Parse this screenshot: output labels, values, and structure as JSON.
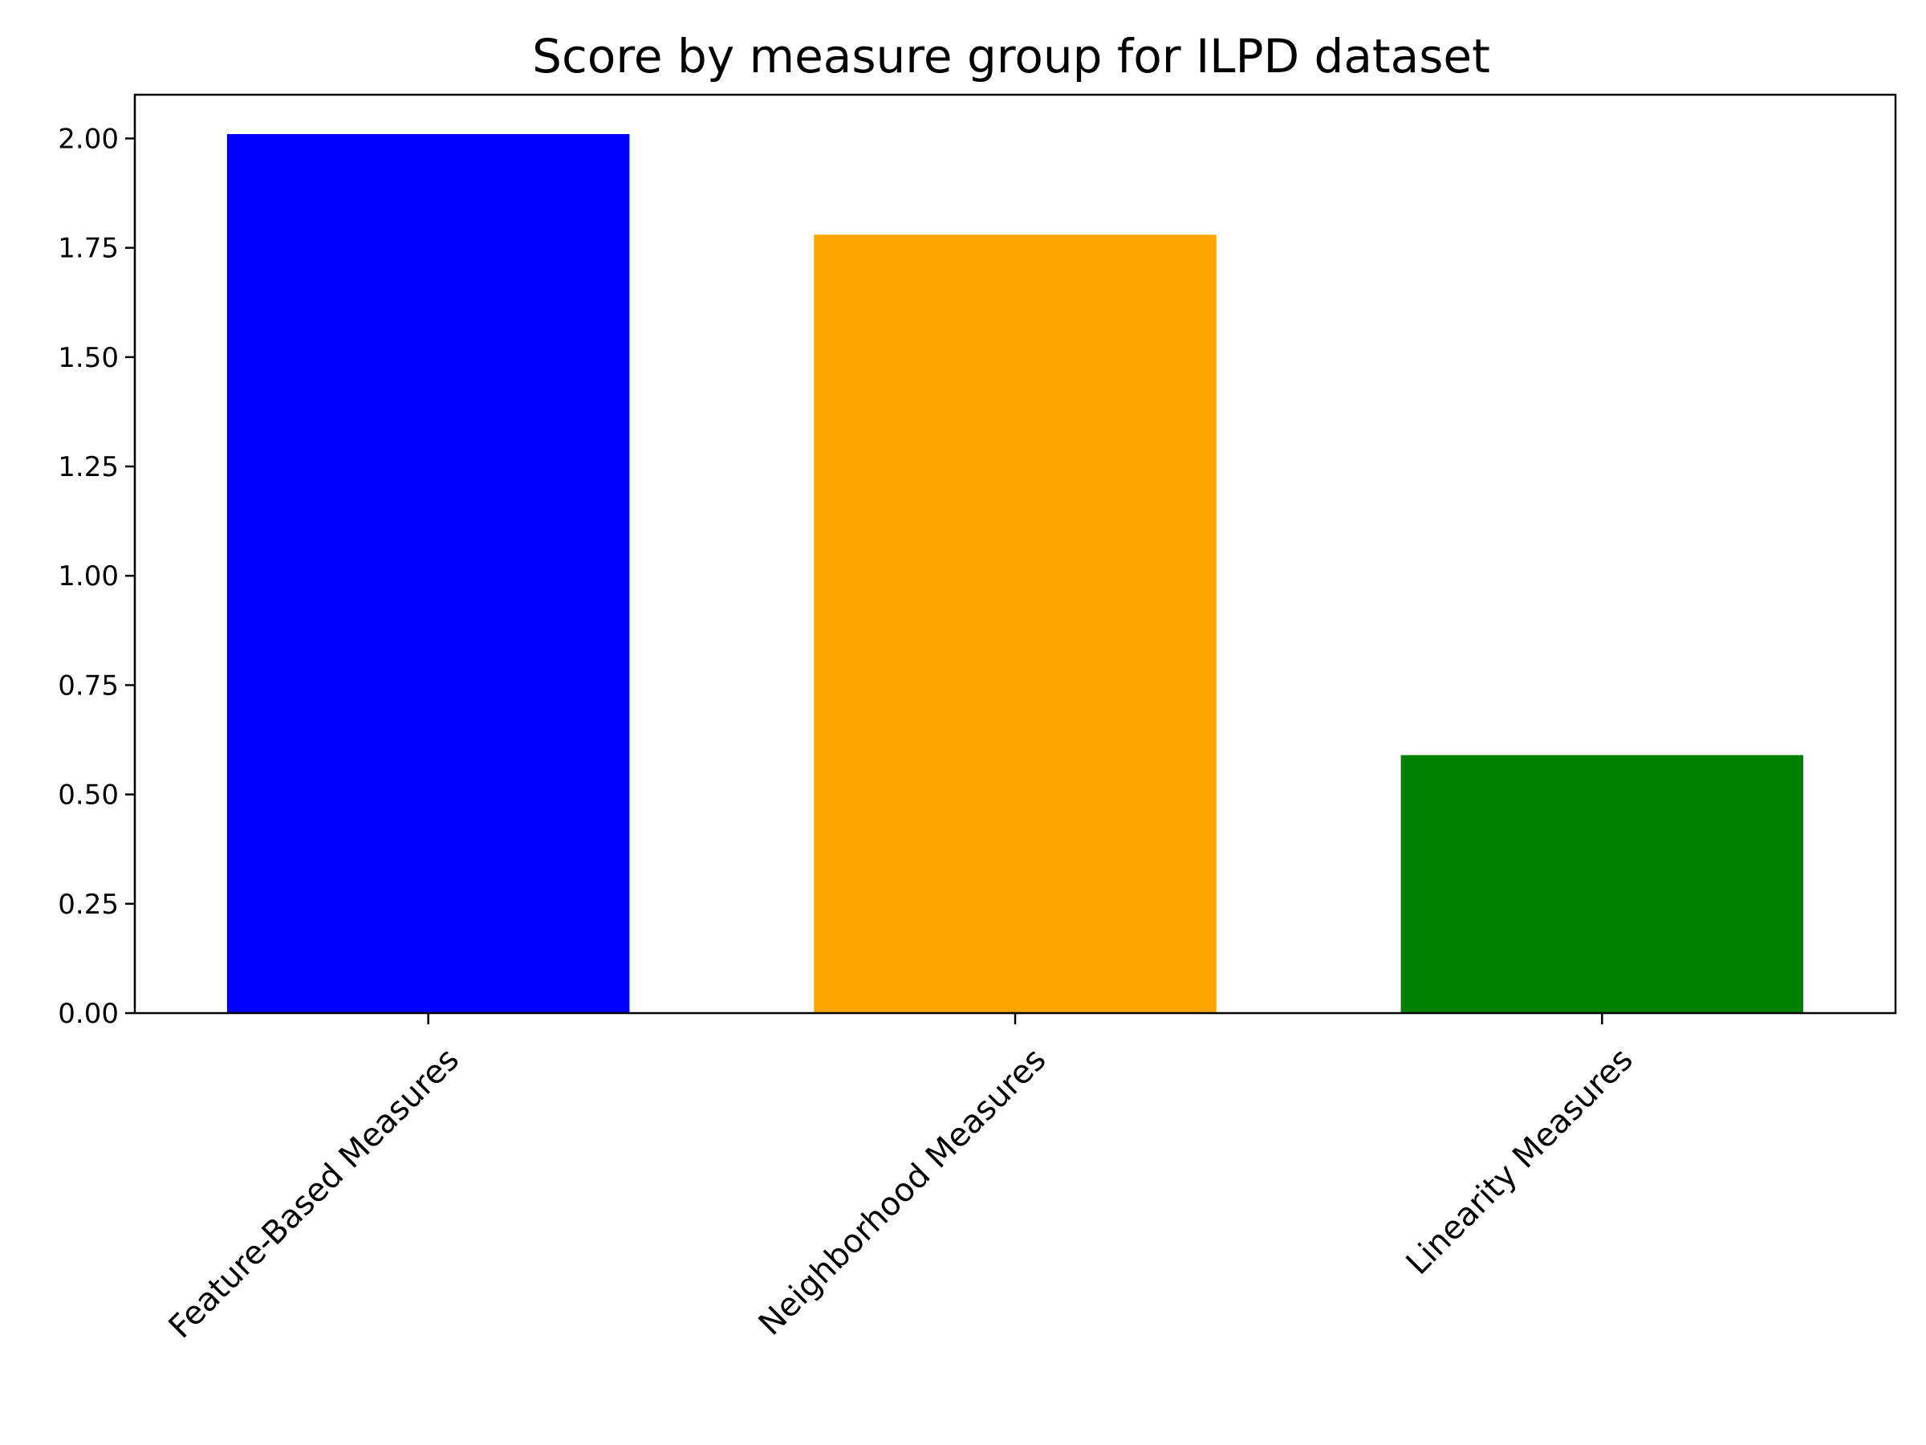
{
  "chart_data": {
    "type": "bar",
    "title": "Score by measure group for ILPD dataset",
    "xlabel": "",
    "ylabel": "",
    "categories": [
      "Feature-Based Measures",
      "Neighborhood Measures",
      "Linearity Measures"
    ],
    "values": [
      2.01,
      1.78,
      0.59
    ],
    "colors": [
      "#0000ff",
      "#ffa500",
      "#008000"
    ],
    "ylim": [
      0,
      2.1
    ],
    "yticks": [
      0.0,
      0.25,
      0.5,
      0.75,
      1.0,
      1.25,
      1.5,
      1.75,
      2.0
    ],
    "ytick_labels": [
      "0.00",
      "0.25",
      "0.50",
      "0.75",
      "1.00",
      "1.25",
      "1.50",
      "1.75",
      "2.00"
    ],
    "x_tick_rotation_deg": 45,
    "grid": false,
    "legend": "none"
  }
}
